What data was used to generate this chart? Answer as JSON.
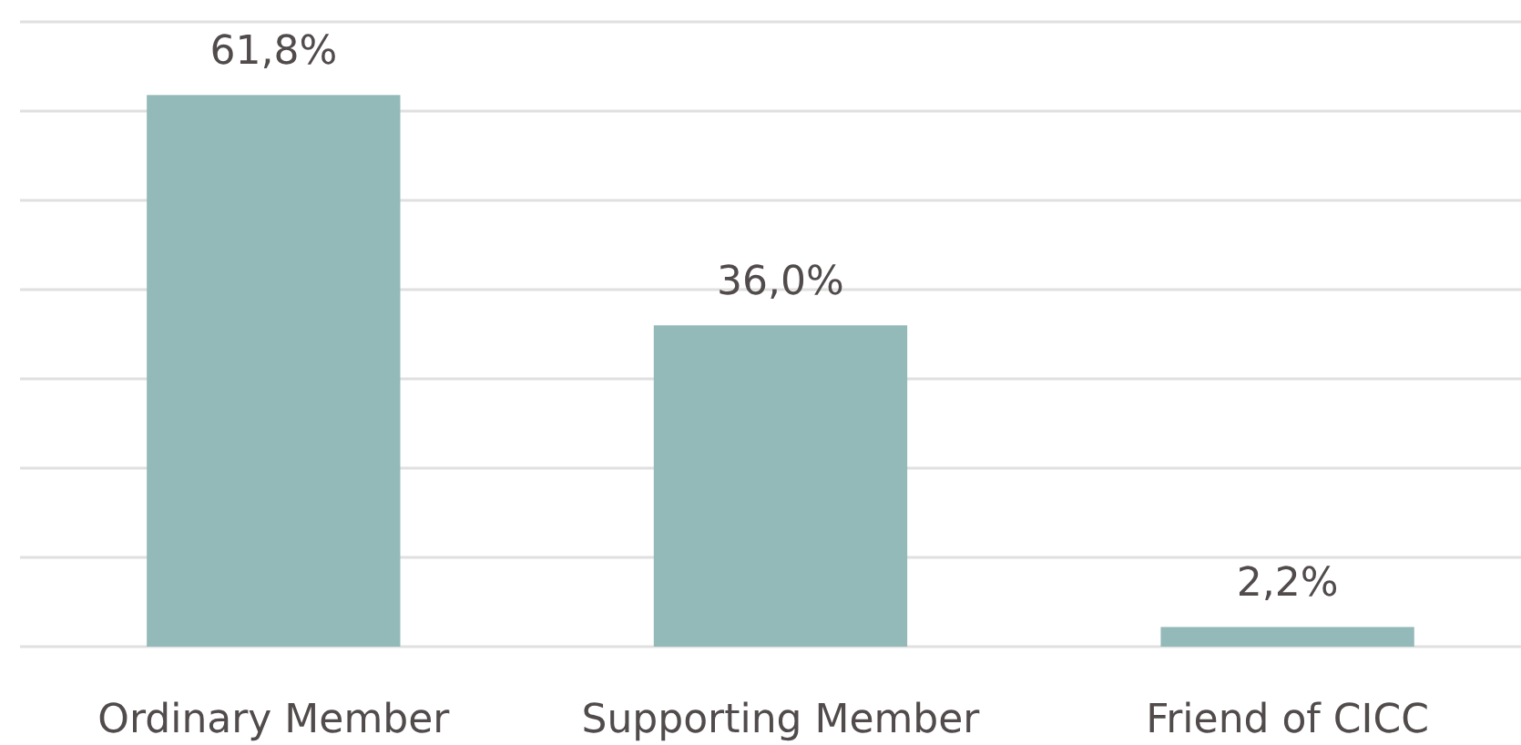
{
  "chart_data": {
    "type": "bar",
    "categories": [
      "Ordinary Member",
      "Supporting Member",
      "Friend of CICC"
    ],
    "values": [
      61.8,
      36.0,
      2.2
    ],
    "value_labels": [
      "61,8%",
      "36,0%",
      "2,2%"
    ],
    "color": "#93b9b9",
    "ylim": [
      0,
      70
    ],
    "yticks": [
      {
        "value": 0,
        "label": null
      },
      {
        "value": 10,
        "label": null
      },
      {
        "value": 20,
        "label": null
      },
      {
        "value": 30,
        "label": null
      },
      {
        "value": 40,
        "label": null
      },
      {
        "value": 50,
        "label": null
      },
      {
        "value": 60,
        "label": null
      },
      {
        "value": 70,
        "label": null
      }
    ],
    "grid": "y",
    "tick_labels": "x"
  }
}
